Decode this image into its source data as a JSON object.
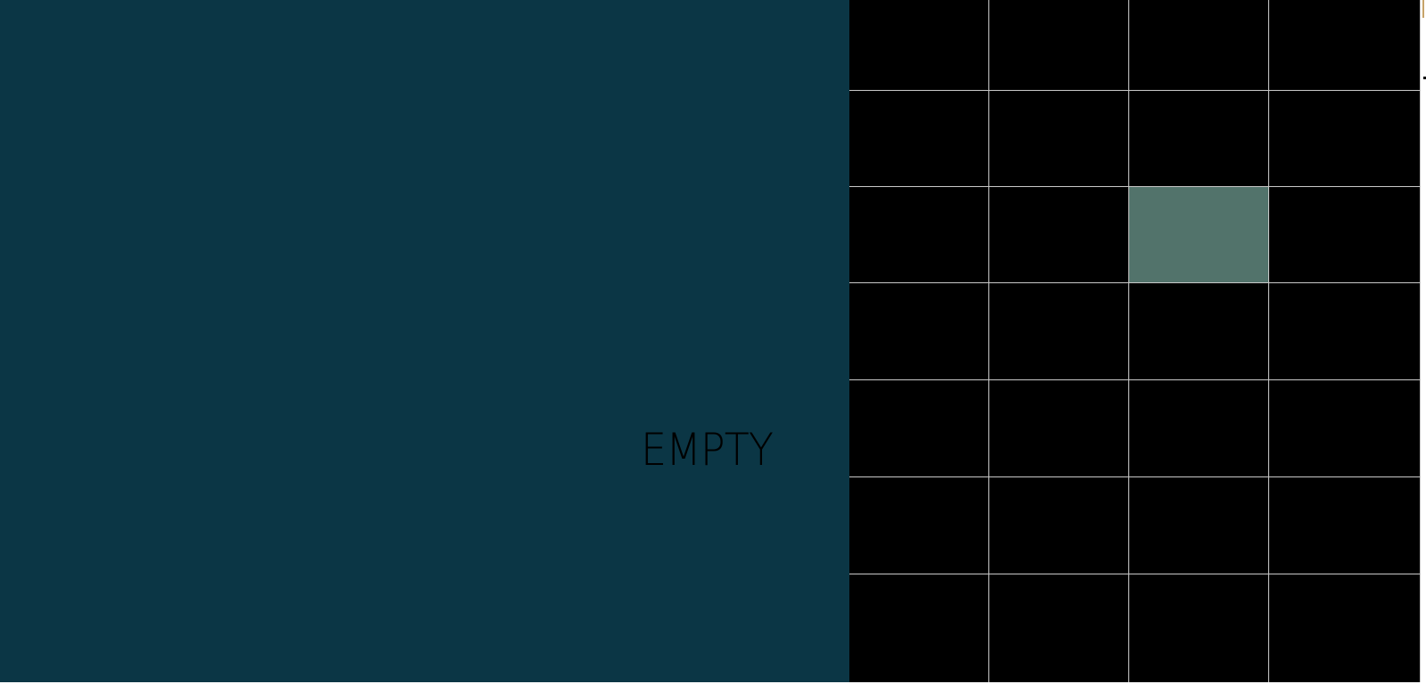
{
  "status": {
    "label": "EMPTY"
  },
  "board": {
    "columns": 4,
    "rows": 7,
    "lit_cells": [
      {
        "row": 2,
        "col": 2
      }
    ]
  },
  "colors": {
    "panel": "#0b3645",
    "board": "#000000",
    "grid_line": "#c9c9c9",
    "lit_cell": "#52736b",
    "status_text": "#000000"
  }
}
